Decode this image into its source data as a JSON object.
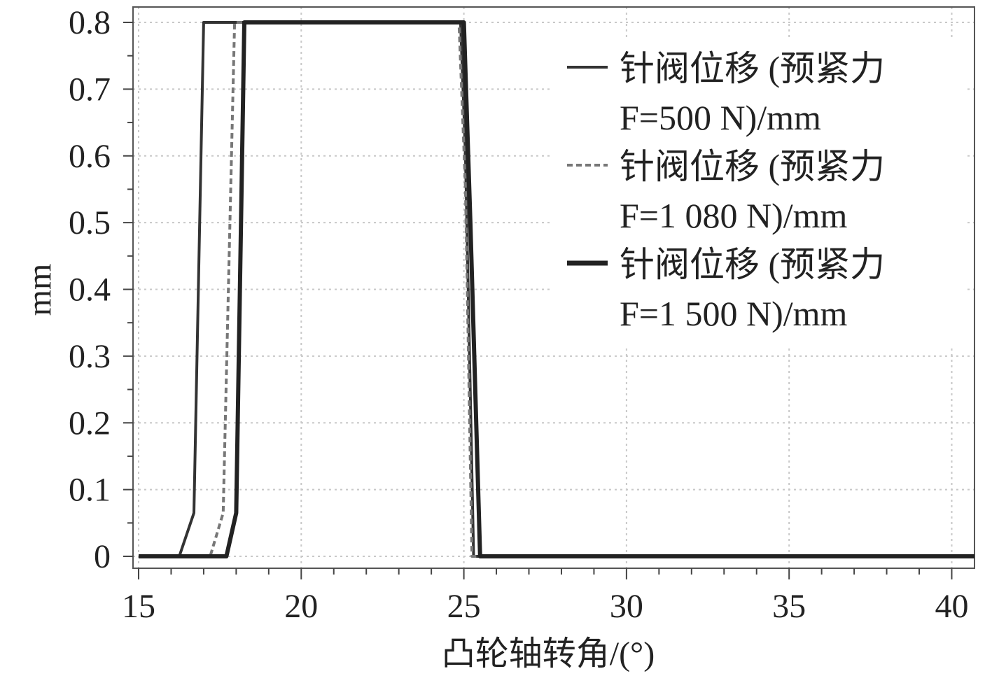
{
  "chart_data": {
    "type": "line",
    "title": "",
    "xlabel": "凸轮轴转角/(°)",
    "ylabel": "mm",
    "xlim": [
      15,
      40.7
    ],
    "ylim": [
      0,
      0.8
    ],
    "x_ticks": [
      "15",
      "20",
      "25",
      "30",
      "35",
      "40"
    ],
    "y_ticks": [
      "0",
      "0.1",
      "0.2",
      "0.3",
      "0.4",
      "0.5",
      "0.6",
      "0.7",
      "0.8"
    ],
    "grid": true,
    "legend_position": "top-right",
    "series": [
      {
        "name": "针阀位移 (预紧力 F=500 N)/mm",
        "legend_lines": [
          "针阀位移 (预紧力",
          "F=500 N)/mm"
        ],
        "style": "solid-thin",
        "color": "#333333",
        "x": [
          15,
          16.25,
          16.7,
          17.0,
          24.9,
          25.05,
          25.3,
          40.7
        ],
        "y": [
          0,
          0,
          0.065,
          0.8,
          0.8,
          0.6,
          0,
          0
        ]
      },
      {
        "name": "针阀位移 (预紧力 F=1 080 N)/mm",
        "legend_lines": [
          "针阀位移 (预紧力",
          "F=1 080 N)/mm"
        ],
        "style": "dashed",
        "color": "#777777",
        "x": [
          15,
          17.2,
          17.6,
          17.95,
          24.85,
          25.05,
          25.25,
          40.7
        ],
        "y": [
          0,
          0,
          0.065,
          0.8,
          0.8,
          0.55,
          0,
          0
        ]
      },
      {
        "name": "针阀位移 (预紧力 F=1 500 N)/mm",
        "legend_lines": [
          "针阀位移 (预紧力",
          "F=1 500 N)/mm"
        ],
        "style": "solid-thick",
        "color": "#222222",
        "x": [
          15,
          17.7,
          18.0,
          18.25,
          25.0,
          25.2,
          25.5,
          40.7
        ],
        "y": [
          0,
          0,
          0.065,
          0.8,
          0.8,
          0.5,
          0,
          0
        ]
      }
    ]
  }
}
